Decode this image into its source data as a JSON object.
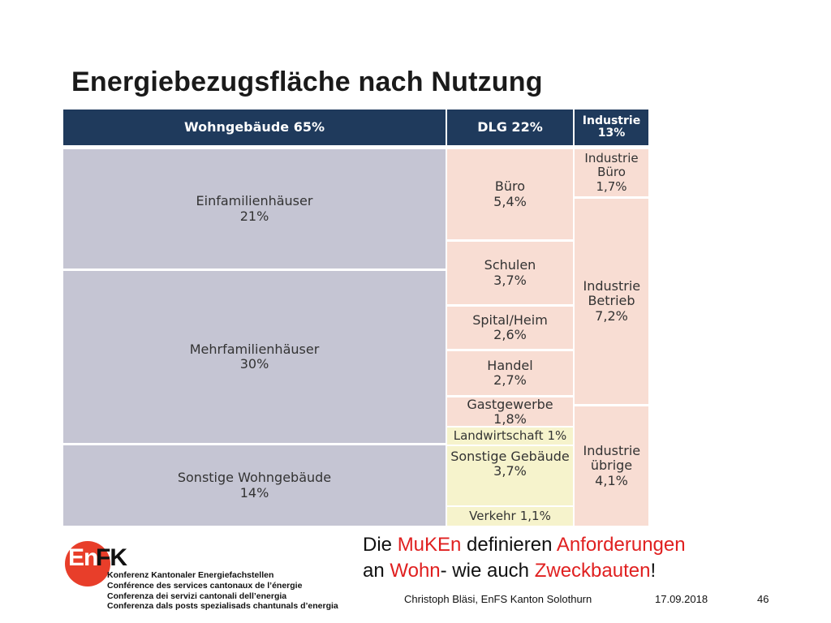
{
  "slide": {
    "title": "Energiebezugsfläche nach Nutzung"
  },
  "headers": {
    "wohn": "Wohngebäude 65%",
    "dlg": "DLG 22%",
    "industrie": "Industrie\n13%"
  },
  "wohn_cells": [
    {
      "name": "Einfamilienhäuser",
      "value": "21%"
    },
    {
      "name": "Mehrfamilienhäuser",
      "value": "30%"
    },
    {
      "name": "Sonstige Wohngebäude",
      "value": "14%"
    }
  ],
  "dlg_cells": [
    {
      "name": "Büro",
      "value": "5,4%"
    },
    {
      "name": "Schulen",
      "value": "3,7%"
    },
    {
      "name": "Spital/Heim",
      "value": "2,6%"
    },
    {
      "name": "Handel",
      "value": "2,7%"
    },
    {
      "name": "Gastgewerbe",
      "value": "1,8%"
    },
    {
      "name": "Landwirtschaft",
      "value": "1%"
    },
    {
      "name": "Sonstige Gebäude",
      "value": "3,7%"
    },
    {
      "name": "Verkehr",
      "value": "1,1%"
    }
  ],
  "industrie_cells": [
    {
      "name": "Industrie Büro",
      "value": "1,7%"
    },
    {
      "name": "Industrie Betrieb",
      "value": "7,2%"
    },
    {
      "name": "Industrie übrige",
      "value": "4,1%"
    }
  ],
  "message": {
    "line1": [
      "Die ",
      "MuKEn",
      " definieren ",
      "Anforderungen"
    ],
    "line2": [
      "an ",
      "Wohn",
      "- wie auch ",
      "Zweckbauten",
      "!"
    ]
  },
  "logo": {
    "en": "En",
    "fk": "FK",
    "lines": [
      "Konferenz Kantonaler Energiefachstellen",
      "Conférence des services cantonaux de l’énergie",
      "Conferenza dei servizi cantonali dell’energia",
      "Conferenza dals posts spezialisads chantunals d’energia"
    ]
  },
  "footer": {
    "author": "Christoph Bläsi, EnFS Kanton Solothurn",
    "date": "17.09.2018",
    "page": "46"
  },
  "colors": {
    "header_bg": "#1f3a5c",
    "wohn_fill": "#c5c5d3",
    "dlg_fill": "#f8ddd3",
    "other_fill": "#f6f3cc",
    "accent_red": "#e02020"
  }
}
